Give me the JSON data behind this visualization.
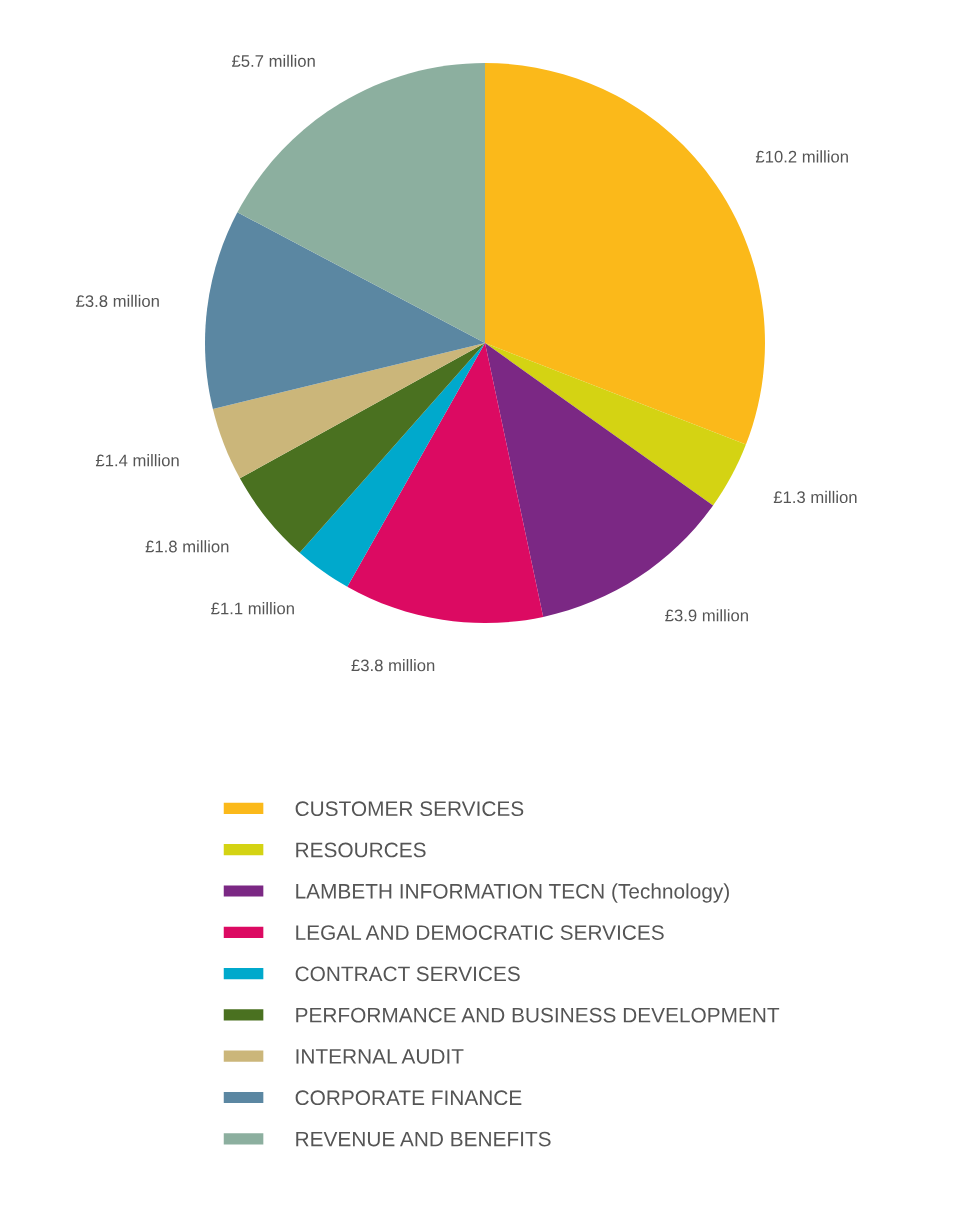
{
  "chart_data": {
    "type": "pie",
    "categories": [
      "CUSTOMER SERVICES",
      "RESOURCES",
      "LAMBETH INFORMATION TECN (Technology)",
      "LEGAL AND DEMOCRATIC SERVICES",
      "CONTRACT SERVICES",
      "PERFORMANCE AND BUSINESS DEVELOPMENT",
      "INTERNAL AUDIT",
      "CORPORATE FINANCE",
      "REVENUE AND BENEFITS"
    ],
    "values": [
      10.2,
      1.3,
      3.9,
      3.8,
      1.1,
      1.8,
      1.4,
      3.8,
      5.7
    ],
    "value_labels": [
      "£10.2 million",
      "£1.3 million",
      "£3.9 million",
      "£3.8 million",
      "£1.1 million",
      "£1.8 million",
      "£1.4 million",
      "£3.8 million",
      "£5.7 million"
    ],
    "colors": [
      "#fbb91a",
      "#d4d313",
      "#7b2884",
      "#dc0a62",
      "#00a9cc",
      "#4a7120",
      "#cbb67a",
      "#5b87a2",
      "#8caf9f"
    ],
    "legend": "bottom"
  }
}
